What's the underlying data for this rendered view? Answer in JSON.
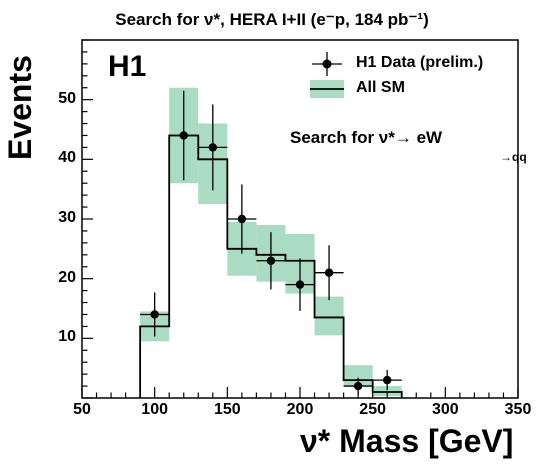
{
  "chart_data": {
    "type": "bar",
    "title": "Search for ν*, HERA I+II (e⁻p, 184 pb⁻¹)",
    "experiment_label": "H1",
    "xlabel": "ν* Mass [GeV]",
    "ylabel": "Events",
    "annotation": "Search for ν*→ eW",
    "annotation_sub": "→qq",
    "xlim": [
      50,
      350
    ],
    "ylim": [
      0,
      60
    ],
    "x_ticks": [
      50,
      100,
      150,
      200,
      250,
      300,
      350
    ],
    "y_ticks": [
      10,
      20,
      30,
      40,
      50
    ],
    "bin_edges": [
      90,
      110,
      130,
      150,
      170,
      190,
      210,
      230,
      250,
      270
    ],
    "series": [
      {
        "name": "H1 Data (prelim.)",
        "style": "points",
        "x": [
          100,
          120,
          140,
          160,
          180,
          200,
          220,
          240,
          260
        ],
        "y": [
          14,
          44,
          42,
          30,
          23,
          19,
          21,
          2,
          3
        ],
        "yerr": [
          3.7,
          7.5,
          7.2,
          5.8,
          4.8,
          4.4,
          4.6,
          1.4,
          1.7
        ]
      },
      {
        "name": "All SM",
        "style": "histogram",
        "x": [
          100,
          120,
          140,
          160,
          180,
          200,
          220,
          240,
          260
        ],
        "y": [
          12,
          44,
          40,
          25,
          24,
          23,
          13.5,
          3,
          1
        ],
        "band_low": [
          9.5,
          36,
          32.5,
          20.5,
          19.5,
          17.5,
          10.5,
          2,
          0.3
        ],
        "band_high": [
          14.5,
          52,
          46,
          29.5,
          29,
          27.5,
          17,
          5.5,
          2
        ]
      }
    ],
    "legend_position": "top-right",
    "band_color": "#a9dcc2",
    "line_color": "#000000"
  }
}
